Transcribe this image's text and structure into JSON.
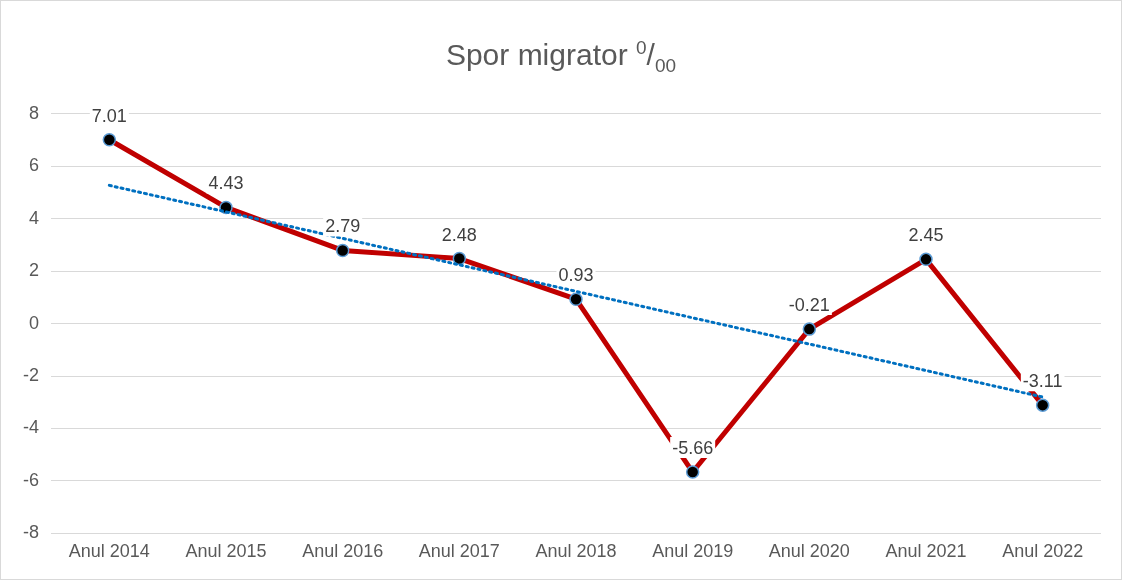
{
  "chart_data": {
    "type": "line",
    "title": "Spor migrator $^{0}$/$_{00}$",
    "categories": [
      "Anul 2014",
      "Anul 2015",
      "Anul 2016",
      "Anul 2017",
      "Anul 2018",
      "Anul 2019",
      "Anul 2020",
      "Anul 2021",
      "Anul 2022"
    ],
    "series": [
      {
        "color": "#c00000",
        "values": [
          7.01,
          4.43,
          2.79,
          2.48,
          0.93,
          -5.66,
          -0.21,
          2.45,
          -3.11
        ],
        "marker": "circle",
        "data_labels": true
      },
      {
        "type": "line",
        "color": "#0070c0",
        "line_style": "dotted",
        "marker": "none",
        "x": [
          "Anul 2014",
          "Anul 2015",
          "Anul 2016",
          "Anul 2017",
          "Anul 2018",
          "Anul 2019",
          "Anul 2020",
          "Anul 2021",
          "Anul 2022"
        ],
        "values": [
          5.27,
          4.26,
          3.25,
          2.24,
          1.23,
          0.22,
          -0.78,
          -1.79,
          -2.8
        ]
      }
    ],
    "ylim": [
      -8,
      8
    ],
    "yticks": [
      -8,
      -6,
      -4,
      -2,
      0,
      2,
      4,
      6,
      8
    ],
    "grid": "y",
    "legend": false
  }
}
